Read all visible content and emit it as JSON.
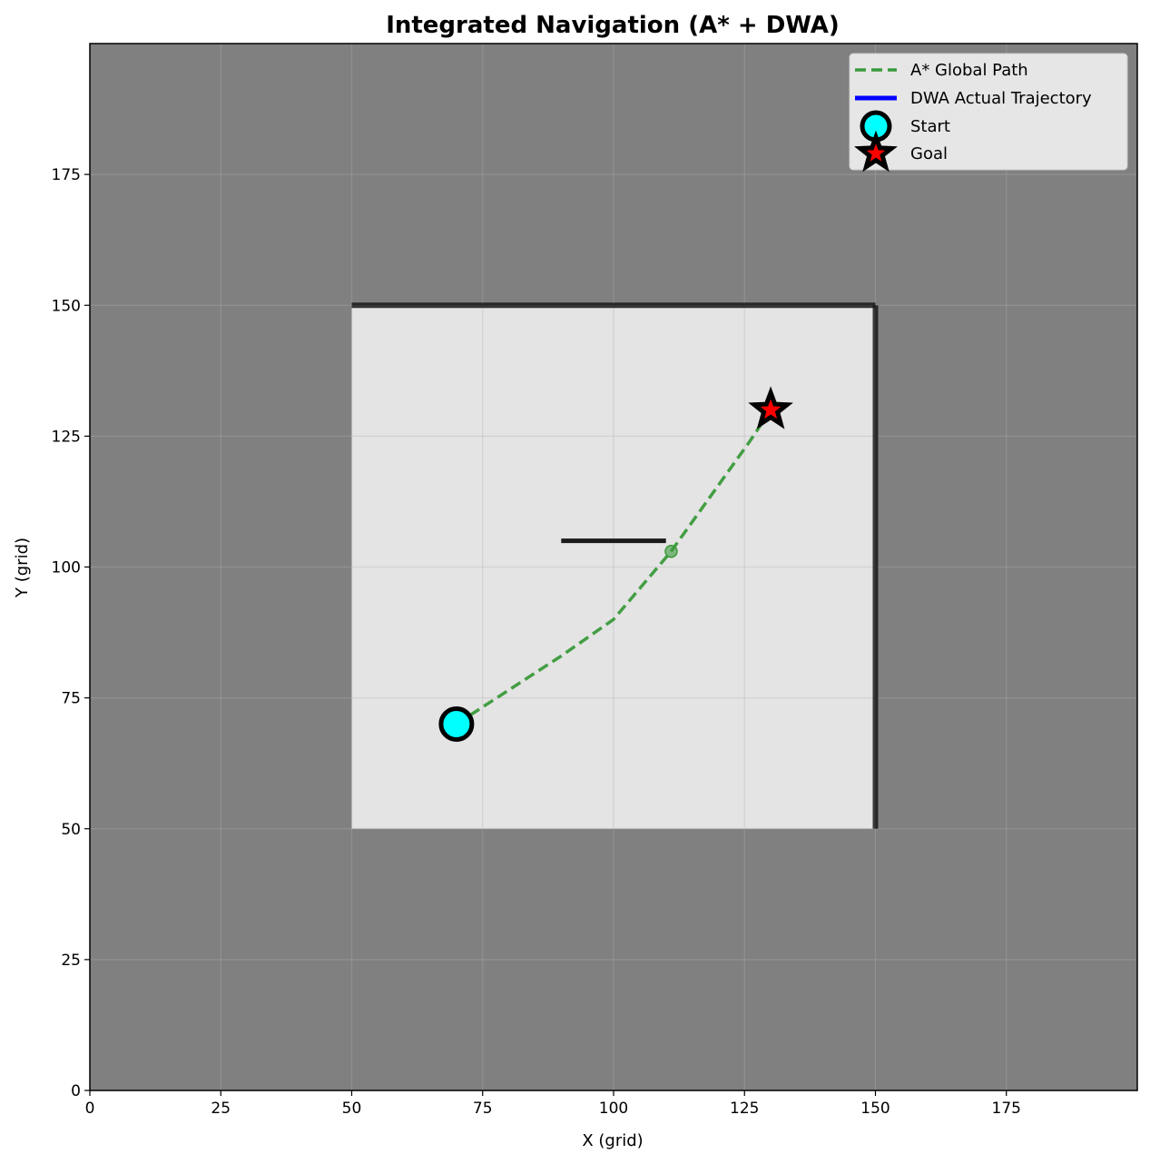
{
  "chart_data": {
    "type": "line",
    "title": "Integrated Navigation (A* + DWA)",
    "xlabel": "X (grid)",
    "ylabel": "Y (grid)",
    "xlim": [
      0,
      200
    ],
    "ylim": [
      0,
      200
    ],
    "xticks": [
      0,
      25,
      50,
      75,
      100,
      125,
      150,
      175
    ],
    "yticks": [
      0,
      25,
      50,
      75,
      100,
      125,
      150,
      175
    ],
    "grid": true,
    "legend_position": "upper right",
    "colors": {
      "background": "#808080",
      "free_space": "#e4e4e4",
      "obstacle": "#1a1a1a",
      "global_path": "#3a9a3a",
      "dwa_trajectory": "#0000ff",
      "start_fill": "#00ffff",
      "goal_fill": "#ff0000",
      "goal_edge": "#000000"
    },
    "free_region": {
      "x": [
        50,
        150
      ],
      "y": [
        50,
        150
      ]
    },
    "obstacles": [
      {
        "name": "top-wall",
        "x": [
          50,
          150
        ],
        "y": [
          150,
          150
        ]
      },
      {
        "name": "right-wall",
        "x": [
          150,
          150
        ],
        "y": [
          50,
          150
        ]
      },
      {
        "name": "inner-wall",
        "x": [
          90,
          110
        ],
        "y": [
          105,
          105
        ]
      }
    ],
    "series": [
      {
        "name": "A* Global Path",
        "style": "dashed",
        "x": [
          70,
          80,
          90,
          100,
          111,
          116,
          121,
          126,
          130
        ],
        "y": [
          70,
          76.5,
          83,
          90,
          103,
          110,
          117,
          124,
          130
        ]
      },
      {
        "name": "DWA Actual Trajectory",
        "style": "solid",
        "x": [
          111
        ],
        "y": [
          103
        ]
      }
    ],
    "start": {
      "name": "Start",
      "x": 70,
      "y": 70
    },
    "goal": {
      "name": "Goal",
      "x": 130,
      "y": 130
    },
    "legend": [
      "A* Global Path",
      "DWA Actual Trajectory",
      "Start",
      "Goal"
    ]
  }
}
